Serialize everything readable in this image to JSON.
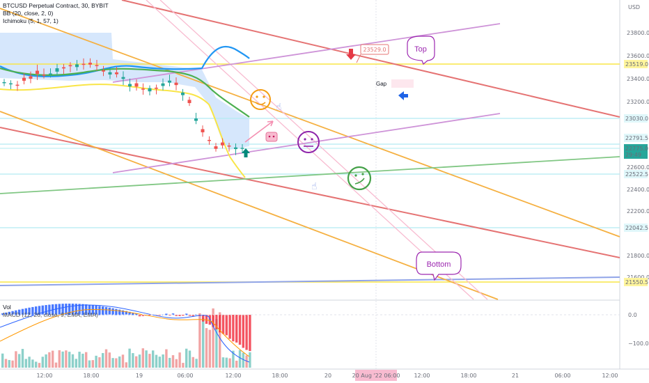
{
  "legend": {
    "symbol": "BTCUSD Perpetual Contract, 30, BYBIT",
    "bb": "BB (20, close, 2, 0)",
    "ichimoku": "Ichimoku (5, 1, 57, 1)"
  },
  "price_axis": {
    "currency": "USD",
    "ticks": [
      "23800.0",
      "23600.0",
      "23400.0",
      "23200.0",
      "22600.0",
      "22400.0",
      "22200.0",
      "21800.0",
      "21600.0"
    ],
    "labels": [
      {
        "text": "23519.0",
        "bg": "#fff59d",
        "fg": "#131722"
      },
      {
        "text": "23030.0",
        "bg": "#e0f7fa",
        "fg": "#131722"
      },
      {
        "text": "22791.5",
        "bg": "#e0f7fa",
        "fg": "#131722"
      },
      {
        "text": "22775.0",
        "bg": "#26a69a",
        "fg": "#ffffff"
      },
      {
        "text": "29:49",
        "bg": "#26a69a",
        "fg": "#ffffff"
      },
      {
        "text": "22522.5",
        "bg": "#e0f7fa",
        "fg": "#131722"
      },
      {
        "text": "22042.5",
        "bg": "#e0f7fa",
        "fg": "#131722"
      },
      {
        "text": "21550.5",
        "bg": "#fff59d",
        "fg": "#131722"
      }
    ]
  },
  "macd_axis": {
    "ticks": [
      "0.0",
      "−100.0"
    ]
  },
  "lower_pane": {
    "vol": "Vol",
    "macd": "MACD (12, 26, close, 9, EMA, EMA)"
  },
  "time_axis": {
    "ticks": [
      "12:00",
      "18:00",
      "19",
      "06:00",
      "12:00",
      "18:00",
      "20",
      "06:00",
      "12:00",
      "18:00",
      "21",
      "06:00",
      "12:00"
    ],
    "highlight": "20 Aug '22  06:00"
  },
  "annotations": {
    "top_bubble": "Top",
    "bottom_bubble": "Bottom",
    "price_tag": "23529.0",
    "gap": "Gap"
  },
  "colors": {
    "red_line": "#e57373",
    "orange_line": "#f5b041",
    "purple_line": "#ce93d8",
    "green_line": "#81c784",
    "yellow_line": "#f9e547",
    "blue_line": "#90a4e8",
    "candle_up": "#26a69a",
    "candle_down": "#ef5350"
  }
}
